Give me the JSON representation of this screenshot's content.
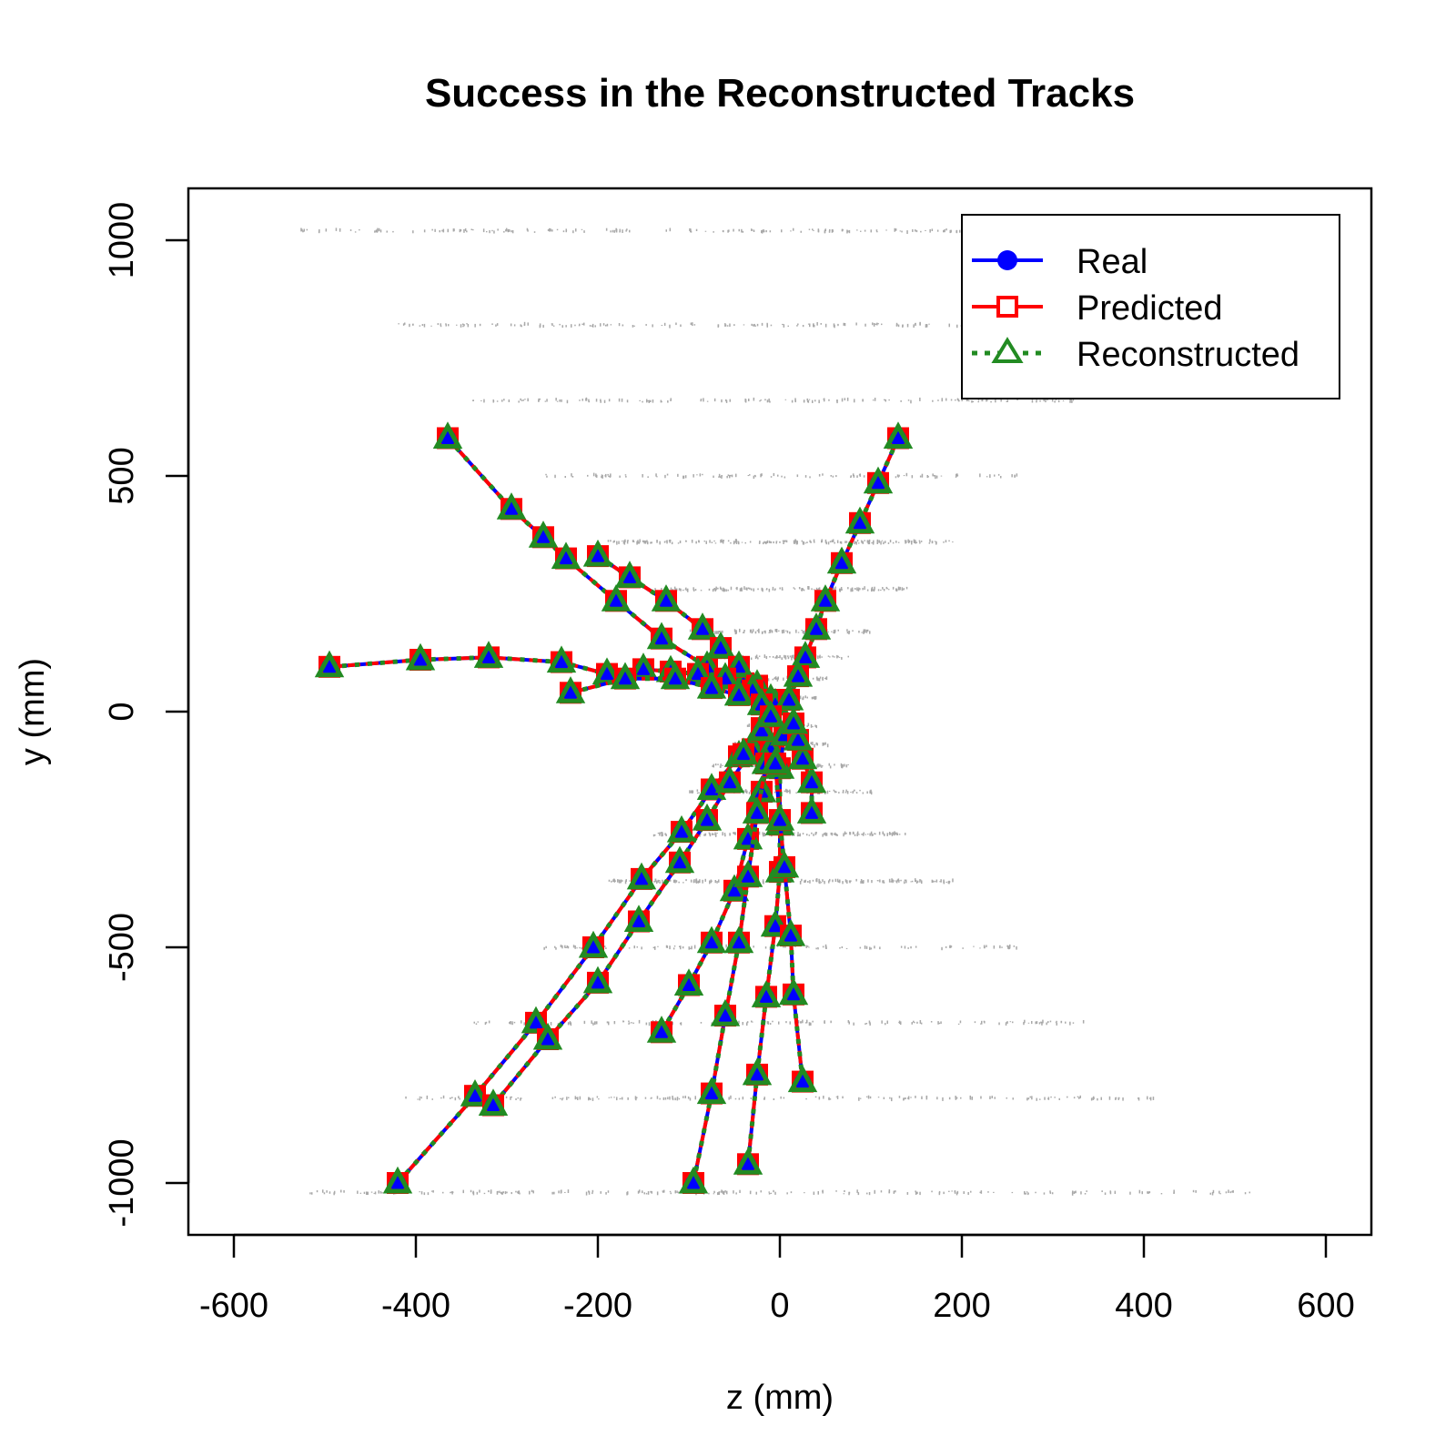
{
  "chart_data": {
    "type": "line",
    "title": "Success in the Reconstructed Tracks",
    "xlabel": "z (mm)",
    "ylabel": "y (mm)",
    "xlim": [
      -650,
      650
    ],
    "ylim": [
      -1110,
      1110
    ],
    "x_ticks": [
      -600,
      -400,
      -200,
      0,
      200,
      400,
      600
    ],
    "x_tick_labels": [
      "-600",
      "-400",
      "-200",
      "0",
      "200",
      "400",
      "600"
    ],
    "y_ticks": [
      -1000,
      -500,
      0,
      500,
      1000
    ],
    "y_tick_labels": [
      "-1000",
      "-500",
      "0",
      "500",
      "1000"
    ],
    "grid": false,
    "legend": {
      "placement": "top-right",
      "entries": [
        {
          "label": "Real",
          "color": "#0000ff",
          "marker": "filled-circle",
          "line": "solid"
        },
        {
          "label": "Predicted",
          "color": "#ff0000",
          "marker": "open-square",
          "line": "solid"
        },
        {
          "label": "Reconstructed",
          "color": "#228b22",
          "marker": "open-triangle",
          "line": "dotted"
        }
      ]
    },
    "background_hits": {
      "color": "#a9a9a9",
      "layers": [
        {
          "y": 1020,
          "z_min": -530,
          "z_max": 200
        },
        {
          "y": 820,
          "z_min": -420,
          "z_max": 200
        },
        {
          "y": 660,
          "z_min": -340,
          "z_max": 340
        },
        {
          "y": 500,
          "z_min": -260,
          "z_max": 260
        },
        {
          "y": 360,
          "z_min": -190,
          "z_max": 190
        },
        {
          "y": 260,
          "z_min": -140,
          "z_max": 140
        },
        {
          "y": 170,
          "z_min": -100,
          "z_max": 100
        },
        {
          "y": 115,
          "z_min": -75,
          "z_max": 75
        },
        {
          "y": 70,
          "z_min": -55,
          "z_max": 55
        },
        {
          "y": 30,
          "z_min": -40,
          "z_max": 40
        },
        {
          "y": -30,
          "z_min": -40,
          "z_max": 40
        },
        {
          "y": -70,
          "z_min": -55,
          "z_max": 55
        },
        {
          "y": -115,
          "z_min": -75,
          "z_max": 75
        },
        {
          "y": -170,
          "z_min": -100,
          "z_max": 100
        },
        {
          "y": -260,
          "z_min": -140,
          "z_max": 140
        },
        {
          "y": -360,
          "z_min": -190,
          "z_max": 190
        },
        {
          "y": -500,
          "z_min": -260,
          "z_max": 260
        },
        {
          "y": -660,
          "z_min": -340,
          "z_max": 340
        },
        {
          "y": -820,
          "z_min": -420,
          "z_max": 420
        },
        {
          "y": -1020,
          "z_min": -520,
          "z_max": 520
        }
      ]
    },
    "tracks": [
      {
        "z": [
          -365,
          -295,
          -260,
          -235,
          -180,
          -130,
          -80,
          -40,
          -10
        ],
        "y": [
          580,
          430,
          370,
          325,
          235,
          155,
          95,
          60,
          20
        ]
      },
      {
        "z": [
          -200,
          -165,
          -125,
          -85,
          -65,
          -45,
          -25,
          -10
        ],
        "y": [
          330,
          285,
          235,
          175,
          135,
          95,
          55,
          25
        ]
      },
      {
        "z": [
          -495,
          -395,
          -320,
          -240,
          -190,
          -150,
          -120,
          -90,
          -60,
          -30,
          -5
        ],
        "y": [
          95,
          110,
          115,
          105,
          80,
          90,
          85,
          80,
          70,
          45,
          15
        ]
      },
      {
        "z": [
          -230,
          -170,
          -115,
          -75,
          -45,
          -20
        ],
        "y": [
          40,
          70,
          70,
          50,
          35,
          15
        ]
      },
      {
        "z": [
          130,
          108,
          88,
          68,
          50,
          40,
          28,
          20,
          10
        ],
        "y": [
          580,
          485,
          400,
          315,
          235,
          175,
          115,
          75,
          25
        ]
      },
      {
        "z": [
          -420,
          -335,
          -268,
          -205,
          -152,
          -108,
          -75,
          -45,
          -20
        ],
        "y": [
          -1000,
          -815,
          -660,
          -500,
          -355,
          -255,
          -165,
          -95,
          -35
        ]
      },
      {
        "z": [
          -315,
          -255,
          -200,
          -155,
          -110,
          -80,
          -55,
          -30
        ],
        "y": [
          -835,
          -695,
          -575,
          -445,
          -320,
          -230,
          -150,
          -80
        ]
      },
      {
        "z": [
          -130,
          -100,
          -75,
          -50,
          -35,
          -20,
          -10
        ],
        "y": [
          -680,
          -580,
          -490,
          -380,
          -270,
          -170,
          -80
        ]
      },
      {
        "z": [
          -95,
          -75,
          -60,
          -45,
          -35,
          -25,
          -15
        ],
        "y": [
          -1000,
          -810,
          -645,
          -490,
          -350,
          -215,
          -110
        ]
      },
      {
        "z": [
          -35,
          -25,
          -15,
          -5,
          0,
          0,
          0,
          5
        ],
        "y": [
          -960,
          -770,
          -605,
          -455,
          -340,
          -240,
          -120,
          -50
        ]
      },
      {
        "z": [
          25,
          15,
          12,
          5,
          0,
          -5
        ],
        "y": [
          -785,
          -600,
          -475,
          -330,
          -230,
          -110
        ]
      },
      {
        "z": [
          35,
          35,
          25,
          20,
          15
        ],
        "y": [
          -215,
          -150,
          -100,
          -60,
          -25
        ]
      },
      {
        "z": [
          -40,
          -20,
          -10
        ],
        "y": [
          -90,
          -40,
          -10
        ]
      }
    ]
  }
}
